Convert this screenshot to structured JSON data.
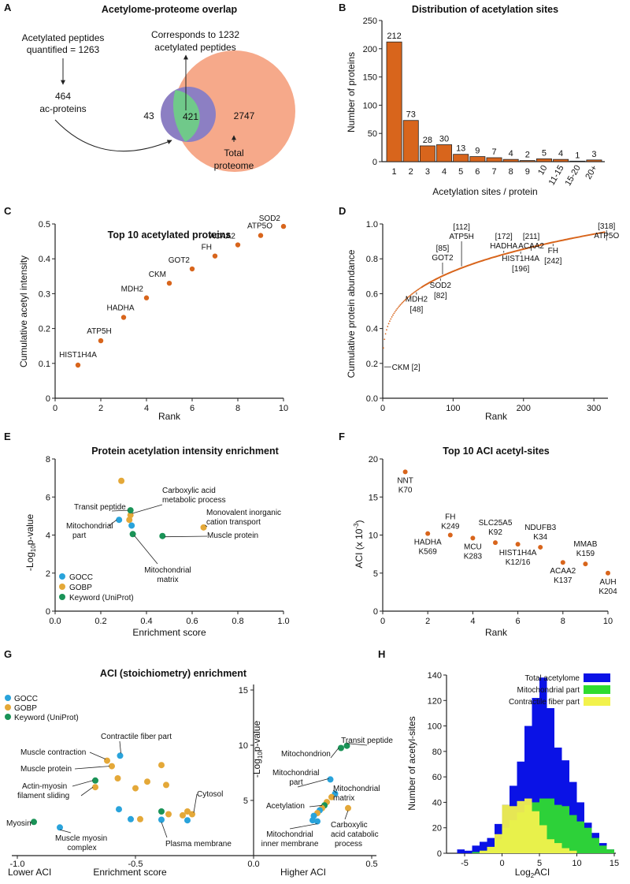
{
  "colors": {
    "orange": "#d8651c",
    "gocc": "#29a3db",
    "gobp": "#e4a838",
    "keyword": "#1a9357",
    "venn_left": "#8c7fc3",
    "venn_mid": "#70c98a",
    "venn_right": "#f6a98a",
    "blue_bar": "#0a12e6",
    "green_bar": "#2fdc2f",
    "yellow_bar": "#f2f24c"
  },
  "panels": {
    "A": {
      "label": "A",
      "title": "Acetylome-proteome overlap",
      "text_peptides_1": "Acetylated peptides",
      "text_peptides_2": "quantified = 1263",
      "text_proteins_1": "464",
      "text_proteins_2": "ac-proteins",
      "text_corr_1": "Corresponds to 1232",
      "text_corr_2": "acetylated peptides",
      "n_left": "43",
      "n_overlap": "421",
      "n_right": "2747",
      "text_total_1": "Total",
      "text_total_2": "proteome"
    },
    "B": {
      "label": "B"
    },
    "C": {
      "label": "C"
    },
    "D": {
      "label": "D"
    },
    "E": {
      "label": "E"
    },
    "F": {
      "label": "F"
    },
    "G": {
      "label": "G"
    },
    "H": {
      "label": "H"
    }
  },
  "chart_data": [
    {
      "panel": "B",
      "type": "bar",
      "title": "Distribution of acetylation sites",
      "xlabel": "Acetylation sites  / protein",
      "ylabel": "Number of proteins",
      "categories": [
        "1",
        "2",
        "3",
        "4",
        "5",
        "6",
        "7",
        "8",
        "9",
        "10",
        "11-15",
        "15-20",
        "20+"
      ],
      "values": [
        212,
        73,
        28,
        30,
        13,
        9,
        7,
        4,
        2,
        5,
        4,
        1,
        3
      ],
      "ylim": [
        0,
        250
      ],
      "yticks": [
        "0",
        "50",
        "100",
        "150",
        "200",
        "250"
      ]
    },
    {
      "panel": "C",
      "type": "scatter",
      "title": "Top 10 acetylated proteins",
      "xlabel": "Rank",
      "ylabel": "Cumulative acetyl intensity",
      "xlim": [
        0,
        10
      ],
      "ylim": [
        0,
        0.5
      ],
      "xticks": [
        "0",
        "2",
        "4",
        "6",
        "8",
        "10"
      ],
      "yticks": [
        "0",
        "0.1",
        "0.2",
        "0.3",
        "0.4",
        "0.5"
      ],
      "points": [
        {
          "x": 1,
          "y": 0.095,
          "label": "HIST1H4A"
        },
        {
          "x": 2,
          "y": 0.165,
          "label": "ATP5H"
        },
        {
          "x": 3,
          "y": 0.232,
          "label": "HADHA"
        },
        {
          "x": 4,
          "y": 0.288,
          "label": "MDH2"
        },
        {
          "x": 5,
          "y": 0.33,
          "label": "CKM"
        },
        {
          "x": 6,
          "y": 0.371,
          "label": "GOT2"
        },
        {
          "x": 7,
          "y": 0.408,
          "label": "FH"
        },
        {
          "x": 8,
          "y": 0.44,
          "label": "ACAA2"
        },
        {
          "x": 9,
          "y": 0.467,
          "label": "ATP5O"
        },
        {
          "x": 10,
          "y": 0.493,
          "label": "SOD2"
        }
      ]
    },
    {
      "panel": "D",
      "type": "line",
      "title": "",
      "xlabel": "Rank",
      "ylabel": "Cumulative protein abundance",
      "xlim": [
        0,
        320
      ],
      "ylim": [
        0,
        1.0
      ],
      "xticks": [
        "0",
        "100",
        "200",
        "300"
      ],
      "yticks": [
        "0.0",
        "0.2",
        "0.4",
        "0.6",
        "0.8",
        "1.0"
      ],
      "annotations": [
        {
          "name": "ATP5H",
          "rank": "[112]",
          "x": 112,
          "y": 0.83
        },
        {
          "name": "GOT2",
          "rank": "[85]",
          "x": 85,
          "y": 0.81
        },
        {
          "name": "HADHA",
          "rank": "[172]",
          "x": 172,
          "y": 0.87
        },
        {
          "name": "ACAA2",
          "rank": "[211]",
          "x": 211,
          "y": 0.89
        },
        {
          "name": "ATP5O",
          "rank": "[318]",
          "x": 318,
          "y": 0.95
        },
        {
          "name": "MDH2",
          "rank": "[48]",
          "x": 48,
          "y": 0.73
        },
        {
          "name": "SOD2",
          "rank": "[82]",
          "x": 82,
          "y": 0.8
        },
        {
          "name": "HIST1H4A",
          "rank": "[196]",
          "x": 196,
          "y": 0.885
        },
        {
          "name": "FH",
          "rank": "[242]",
          "x": 242,
          "y": 0.905
        },
        {
          "name": "CKM",
          "rank": "[2]",
          "x": 2,
          "y": 0.18
        }
      ]
    },
    {
      "panel": "E",
      "type": "scatter",
      "title": "Protein acetylation intensity enrichment",
      "xlabel": "Enrichment score",
      "ylabel": "-Log10p-value",
      "xlim": [
        0,
        1.0
      ],
      "ylim": [
        0,
        8
      ],
      "xticks": [
        "0.0",
        "0.2",
        "0.4",
        "0.6",
        "0.8",
        "1.0"
      ],
      "yticks": [
        "0",
        "2",
        "4",
        "6",
        "8"
      ],
      "legend": [
        "GOCC",
        "GOBP",
        "Keyword (UniProt)"
      ],
      "points": [
        {
          "x": 0.29,
          "y": 6.85,
          "cat": "GOBP",
          "label": ""
        },
        {
          "x": 0.33,
          "y": 5.05,
          "cat": "GOBP",
          "label": "Carboxylic acid metabolic process"
        },
        {
          "x": 0.325,
          "y": 4.8,
          "cat": "GOBP",
          "label": ""
        },
        {
          "x": 0.33,
          "y": 5.3,
          "cat": "Keyword",
          "label": "Transit peptide"
        },
        {
          "x": 0.28,
          "y": 4.8,
          "cat": "GOCC",
          "label": "Mitochondrial part"
        },
        {
          "x": 0.335,
          "y": 4.5,
          "cat": "GOCC",
          "label": ""
        },
        {
          "x": 0.34,
          "y": 4.05,
          "cat": "Keyword",
          "label": "Mitochondrial matrix"
        },
        {
          "x": 0.47,
          "y": 3.95,
          "cat": "Keyword",
          "label": "Muscle protein"
        },
        {
          "x": 0.65,
          "y": 4.4,
          "cat": "GOBP",
          "label": "Monovalent inorganic cation transport"
        }
      ]
    },
    {
      "panel": "F",
      "type": "scatter",
      "title": "Top 10 ACI acetyl-sites",
      "xlabel": "Rank",
      "ylabel": "ACI (x 10-3)",
      "xlim": [
        0,
        10
      ],
      "ylim": [
        0,
        20
      ],
      "xticks": [
        "0",
        "2",
        "4",
        "6",
        "8",
        "10"
      ],
      "yticks": [
        "0",
        "5",
        "10",
        "15",
        "20"
      ],
      "points": [
        {
          "x": 1,
          "y": 18.3,
          "label": "NNT",
          "site": "K70"
        },
        {
          "x": 2,
          "y": 10.2,
          "label": "HADHA",
          "site": "K569"
        },
        {
          "x": 3,
          "y": 10.0,
          "label": "FH",
          "site": "K249"
        },
        {
          "x": 4,
          "y": 9.6,
          "label": "MCU",
          "site": "K283"
        },
        {
          "x": 5,
          "y": 9.0,
          "label": "SLC25A5",
          "site": "K92"
        },
        {
          "x": 6,
          "y": 8.8,
          "label": "HIST1H4A",
          "site": "K12/16"
        },
        {
          "x": 7,
          "y": 8.4,
          "label": "NDUFB3",
          "site": "K34"
        },
        {
          "x": 8,
          "y": 6.4,
          "label": "ACAA2",
          "site": "K137"
        },
        {
          "x": 9,
          "y": 6.2,
          "label": "MMAB",
          "site": "K159"
        },
        {
          "x": 10,
          "y": 5.0,
          "label": "AUH",
          "site": "K204"
        }
      ]
    },
    {
      "panel": "G",
      "type": "scatter",
      "title": "ACI (stoichiometry) enrichment",
      "xlabel": "Enrichment score",
      "ylabel": "-Log10p-value",
      "xlim": [
        -1.0,
        0.5
      ],
      "ylim": [
        0,
        15
      ],
      "xticks": [
        "-1.0",
        "-0.5",
        "0.0",
        "0.5"
      ],
      "yticks": [
        "5",
        "10",
        "15"
      ],
      "lower_label": "Lower ACI",
      "higher_label": "Higher ACI",
      "legend": [
        "GOCC",
        "GOBP",
        "Keyword (UniProt)"
      ],
      "points": [
        {
          "x": -0.93,
          "y": 3.05,
          "cat": "Keyword"
        },
        {
          "x": -0.82,
          "y": 2.55,
          "cat": "GOCC"
        },
        {
          "x": -0.67,
          "y": 6.8,
          "cat": "Keyword"
        },
        {
          "x": -0.67,
          "y": 6.2,
          "cat": "GOBP"
        },
        {
          "x": -0.62,
          "y": 8.6,
          "cat": "GOBP"
        },
        {
          "x": -0.565,
          "y": 9.05,
          "cat": "GOCC"
        },
        {
          "x": -0.6,
          "y": 8.1,
          "cat": "GOBP"
        },
        {
          "x": -0.575,
          "y": 7.0,
          "cat": "GOBP"
        },
        {
          "x": -0.5,
          "y": 6.1,
          "cat": "GOBP"
        },
        {
          "x": -0.45,
          "y": 6.7,
          "cat": "GOBP"
        },
        {
          "x": -0.39,
          "y": 8.2,
          "cat": "GOBP"
        },
        {
          "x": -0.37,
          "y": 6.4,
          "cat": "GOBP"
        },
        {
          "x": -0.57,
          "y": 4.2,
          "cat": "GOCC"
        },
        {
          "x": -0.52,
          "y": 3.3,
          "cat": "GOCC"
        },
        {
          "x": -0.48,
          "y": 3.3,
          "cat": "GOBP"
        },
        {
          "x": -0.39,
          "y": 4.0,
          "cat": "Keyword"
        },
        {
          "x": -0.36,
          "y": 3.75,
          "cat": "GOBP"
        },
        {
          "x": -0.3,
          "y": 3.65,
          "cat": "GOBP"
        },
        {
          "x": -0.28,
          "y": 4.0,
          "cat": "GOBP"
        },
        {
          "x": -0.26,
          "y": 3.75,
          "cat": "GOBP"
        },
        {
          "x": -0.28,
          "y": 3.2,
          "cat": "GOCC"
        },
        {
          "x": -0.39,
          "y": 3.25,
          "cat": "GOCC"
        },
        {
          "x": 0.395,
          "y": 9.95,
          "cat": "Keyword"
        },
        {
          "x": 0.37,
          "y": 9.75,
          "cat": "Keyword"
        },
        {
          "x": 0.325,
          "y": 6.9,
          "cat": "GOCC"
        },
        {
          "x": 0.345,
          "y": 5.6,
          "cat": "GOCC"
        },
        {
          "x": 0.33,
          "y": 5.3,
          "cat": "GOBP"
        },
        {
          "x": 0.31,
          "y": 4.85,
          "cat": "GOBP"
        },
        {
          "x": 0.3,
          "y": 4.55,
          "cat": "Keyword"
        },
        {
          "x": 0.29,
          "y": 4.3,
          "cat": "GOBP"
        },
        {
          "x": 0.28,
          "y": 4.1,
          "cat": "GOCC"
        },
        {
          "x": 0.27,
          "y": 3.85,
          "cat": "GOBP"
        },
        {
          "x": 0.255,
          "y": 3.6,
          "cat": "GOCC"
        },
        {
          "x": 0.25,
          "y": 3.2,
          "cat": "GOCC"
        },
        {
          "x": 0.27,
          "y": 3.1,
          "cat": "GOCC"
        },
        {
          "x": 0.4,
          "y": 4.3,
          "cat": "GOBP"
        }
      ],
      "labels": [
        "Muscle contraction",
        "Contractile fiber part",
        "Muscle protein",
        "Actin-myosin filament sliding",
        "Cytosol",
        "Myosin",
        "Muscle myosin complex",
        "Plasma membrane",
        "Transit peptide",
        "Mitochondrion",
        "Mitochondrial part",
        "Mitochondrial matrix",
        "Acetylation",
        "Mitochondrial inner membrane",
        "Carboxylic acid catabolic process"
      ]
    },
    {
      "panel": "H",
      "type": "bar",
      "title": "",
      "xlabel": "Log2ACI",
      "ylabel": "Number of acetyl-sites",
      "xlim": [
        -7,
        15
      ],
      "ylim": [
        0,
        140
      ],
      "xticks": [
        "-5",
        "0",
        "5",
        "10",
        "15"
      ],
      "yticks": [
        "0",
        "20",
        "40",
        "60",
        "80",
        "100",
        "120",
        "140"
      ],
      "bin_start": -6,
      "bin_width": 1,
      "series": [
        {
          "name": "Total acetylome",
          "values": [
            3,
            2,
            6,
            9,
            12,
            23,
            38,
            53,
            72,
            100,
            122,
            138,
            114,
            83,
            73,
            56,
            40,
            24,
            16,
            8,
            3
          ]
        },
        {
          "name": "Mitochondrial part",
          "values": [
            0,
            0,
            1,
            2,
            5,
            11,
            20,
            26,
            32,
            38,
            40,
            43,
            43,
            38,
            37,
            30,
            25,
            20,
            12,
            6,
            3
          ]
        },
        {
          "name": "Contractile fiber part",
          "values": [
            0,
            0,
            0,
            2,
            5,
            15,
            38,
            37,
            41,
            43,
            33,
            22,
            11,
            8,
            4,
            2,
            0,
            0,
            0,
            0,
            0
          ]
        }
      ]
    }
  ]
}
